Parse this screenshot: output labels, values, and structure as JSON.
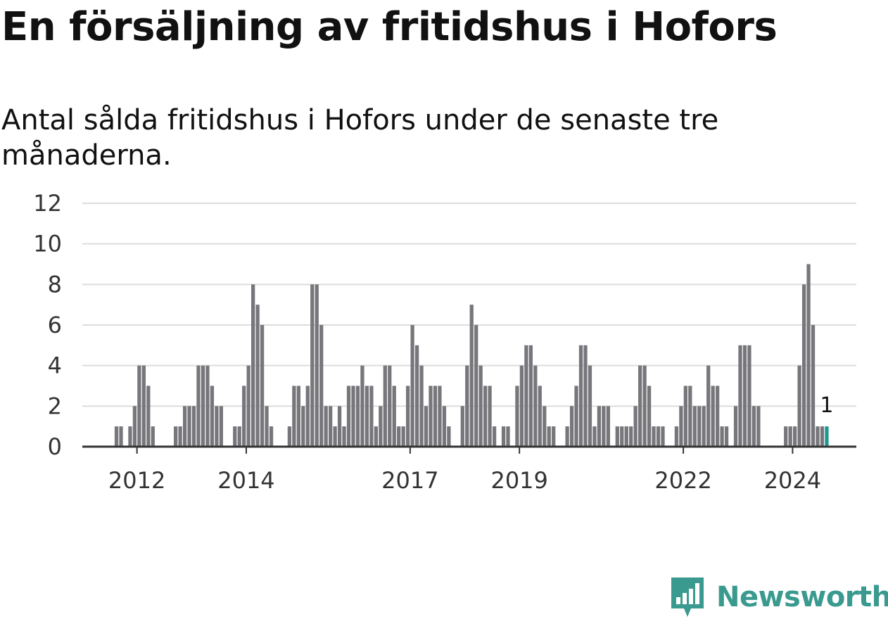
{
  "title": "En försäljning av fritidshus i Hofors",
  "subtitle": "Antal sålda fritidshus i Hofors under de senaste tre månaderna.",
  "brand": {
    "name": "Newsworthy",
    "icon": "newsworthy-logo-icon",
    "color": "#3a9a8f"
  },
  "colors": {
    "bar": "#77767b",
    "highlight": "#1a9a8f",
    "grid": "#dddddd",
    "axis": "#333333"
  },
  "chart_data": {
    "type": "bar",
    "xlabel": "",
    "ylabel": "",
    "ylim": [
      0,
      12
    ],
    "yticks": [
      0,
      2,
      4,
      6,
      8,
      10,
      12
    ],
    "grid": true,
    "x_start": "2011-01",
    "x_end": "2025-02",
    "xticks": [
      {
        "label": "2012",
        "date": "2012-01"
      },
      {
        "label": "2014",
        "date": "2014-01"
      },
      {
        "label": "2017",
        "date": "2017-01"
      },
      {
        "label": "2019",
        "date": "2019-01"
      },
      {
        "label": "2022",
        "date": "2022-01"
      },
      {
        "label": "2024",
        "date": "2024-01"
      }
    ],
    "series": [
      {
        "values": [
          {
            "x": "2011-08",
            "y": 1
          },
          {
            "x": "2011-09",
            "y": 1
          },
          {
            "x": "2011-11",
            "y": 1
          },
          {
            "x": "2011-12",
            "y": 2
          },
          {
            "x": "2012-01",
            "y": 4
          },
          {
            "x": "2012-02",
            "y": 4
          },
          {
            "x": "2012-03",
            "y": 3
          },
          {
            "x": "2012-04",
            "y": 1
          },
          {
            "x": "2012-09",
            "y": 1
          },
          {
            "x": "2012-10",
            "y": 1
          },
          {
            "x": "2012-11",
            "y": 2
          },
          {
            "x": "2012-12",
            "y": 2
          },
          {
            "x": "2013-01",
            "y": 2
          },
          {
            "x": "2013-02",
            "y": 4
          },
          {
            "x": "2013-03",
            "y": 4
          },
          {
            "x": "2013-04",
            "y": 4
          },
          {
            "x": "2013-05",
            "y": 3
          },
          {
            "x": "2013-06",
            "y": 2
          },
          {
            "x": "2013-07",
            "y": 2
          },
          {
            "x": "2013-10",
            "y": 1
          },
          {
            "x": "2013-11",
            "y": 1
          },
          {
            "x": "2013-12",
            "y": 3
          },
          {
            "x": "2014-01",
            "y": 4
          },
          {
            "x": "2014-02",
            "y": 8
          },
          {
            "x": "2014-03",
            "y": 7
          },
          {
            "x": "2014-04",
            "y": 6
          },
          {
            "x": "2014-05",
            "y": 2
          },
          {
            "x": "2014-06",
            "y": 1
          },
          {
            "x": "2014-10",
            "y": 1
          },
          {
            "x": "2014-11",
            "y": 3
          },
          {
            "x": "2014-12",
            "y": 3
          },
          {
            "x": "2015-01",
            "y": 2
          },
          {
            "x": "2015-02",
            "y": 3
          },
          {
            "x": "2015-03",
            "y": 8
          },
          {
            "x": "2015-04",
            "y": 8
          },
          {
            "x": "2015-05",
            "y": 6
          },
          {
            "x": "2015-06",
            "y": 2
          },
          {
            "x": "2015-07",
            "y": 2
          },
          {
            "x": "2015-08",
            "y": 1
          },
          {
            "x": "2015-09",
            "y": 2
          },
          {
            "x": "2015-10",
            "y": 1
          },
          {
            "x": "2015-11",
            "y": 3
          },
          {
            "x": "2015-12",
            "y": 3
          },
          {
            "x": "2016-01",
            "y": 3
          },
          {
            "x": "2016-02",
            "y": 4
          },
          {
            "x": "2016-03",
            "y": 3
          },
          {
            "x": "2016-04",
            "y": 3
          },
          {
            "x": "2016-05",
            "y": 1
          },
          {
            "x": "2016-06",
            "y": 2
          },
          {
            "x": "2016-07",
            "y": 4
          },
          {
            "x": "2016-08",
            "y": 4
          },
          {
            "x": "2016-09",
            "y": 3
          },
          {
            "x": "2016-10",
            "y": 1
          },
          {
            "x": "2016-11",
            "y": 1
          },
          {
            "x": "2016-12",
            "y": 3
          },
          {
            "x": "2017-01",
            "y": 6
          },
          {
            "x": "2017-02",
            "y": 5
          },
          {
            "x": "2017-03",
            "y": 4
          },
          {
            "x": "2017-04",
            "y": 2
          },
          {
            "x": "2017-05",
            "y": 3
          },
          {
            "x": "2017-06",
            "y": 3
          },
          {
            "x": "2017-07",
            "y": 3
          },
          {
            "x": "2017-08",
            "y": 2
          },
          {
            "x": "2017-09",
            "y": 1
          },
          {
            "x": "2017-12",
            "y": 2
          },
          {
            "x": "2018-01",
            "y": 4
          },
          {
            "x": "2018-02",
            "y": 7
          },
          {
            "x": "2018-03",
            "y": 6
          },
          {
            "x": "2018-04",
            "y": 4
          },
          {
            "x": "2018-05",
            "y": 3
          },
          {
            "x": "2018-06",
            "y": 3
          },
          {
            "x": "2018-07",
            "y": 1
          },
          {
            "x": "2018-09",
            "y": 1
          },
          {
            "x": "2018-10",
            "y": 1
          },
          {
            "x": "2018-12",
            "y": 3
          },
          {
            "x": "2019-01",
            "y": 4
          },
          {
            "x": "2019-02",
            "y": 5
          },
          {
            "x": "2019-03",
            "y": 5
          },
          {
            "x": "2019-04",
            "y": 4
          },
          {
            "x": "2019-05",
            "y": 3
          },
          {
            "x": "2019-06",
            "y": 2
          },
          {
            "x": "2019-07",
            "y": 1
          },
          {
            "x": "2019-08",
            "y": 1
          },
          {
            "x": "2019-11",
            "y": 1
          },
          {
            "x": "2019-12",
            "y": 2
          },
          {
            "x": "2020-01",
            "y": 3
          },
          {
            "x": "2020-02",
            "y": 5
          },
          {
            "x": "2020-03",
            "y": 5
          },
          {
            "x": "2020-04",
            "y": 4
          },
          {
            "x": "2020-05",
            "y": 1
          },
          {
            "x": "2020-06",
            "y": 2
          },
          {
            "x": "2020-07",
            "y": 2
          },
          {
            "x": "2020-08",
            "y": 2
          },
          {
            "x": "2020-10",
            "y": 1
          },
          {
            "x": "2020-11",
            "y": 1
          },
          {
            "x": "2020-12",
            "y": 1
          },
          {
            "x": "2021-01",
            "y": 1
          },
          {
            "x": "2021-02",
            "y": 2
          },
          {
            "x": "2021-03",
            "y": 4
          },
          {
            "x": "2021-04",
            "y": 4
          },
          {
            "x": "2021-05",
            "y": 3
          },
          {
            "x": "2021-06",
            "y": 1
          },
          {
            "x": "2021-07",
            "y": 1
          },
          {
            "x": "2021-08",
            "y": 1
          },
          {
            "x": "2021-11",
            "y": 1
          },
          {
            "x": "2021-12",
            "y": 2
          },
          {
            "x": "2022-01",
            "y": 3
          },
          {
            "x": "2022-02",
            "y": 3
          },
          {
            "x": "2022-03",
            "y": 2
          },
          {
            "x": "2022-04",
            "y": 2
          },
          {
            "x": "2022-05",
            "y": 2
          },
          {
            "x": "2022-06",
            "y": 4
          },
          {
            "x": "2022-07",
            "y": 3
          },
          {
            "x": "2022-08",
            "y": 3
          },
          {
            "x": "2022-09",
            "y": 1
          },
          {
            "x": "2022-10",
            "y": 1
          },
          {
            "x": "2022-12",
            "y": 2
          },
          {
            "x": "2023-01",
            "y": 5
          },
          {
            "x": "2023-02",
            "y": 5
          },
          {
            "x": "2023-03",
            "y": 5
          },
          {
            "x": "2023-04",
            "y": 2
          },
          {
            "x": "2023-05",
            "y": 2
          },
          {
            "x": "2023-11",
            "y": 1
          },
          {
            "x": "2023-12",
            "y": 1
          },
          {
            "x": "2024-01",
            "y": 1
          },
          {
            "x": "2024-02",
            "y": 4
          },
          {
            "x": "2024-03",
            "y": 8
          },
          {
            "x": "2024-04",
            "y": 9
          },
          {
            "x": "2024-05",
            "y": 6
          },
          {
            "x": "2024-06",
            "y": 1
          },
          {
            "x": "2024-07",
            "y": 1
          },
          {
            "x": "2024-08",
            "y": 1
          }
        ]
      }
    ],
    "highlight": {
      "x": "2024-08",
      "y": 1,
      "label": "1"
    }
  }
}
